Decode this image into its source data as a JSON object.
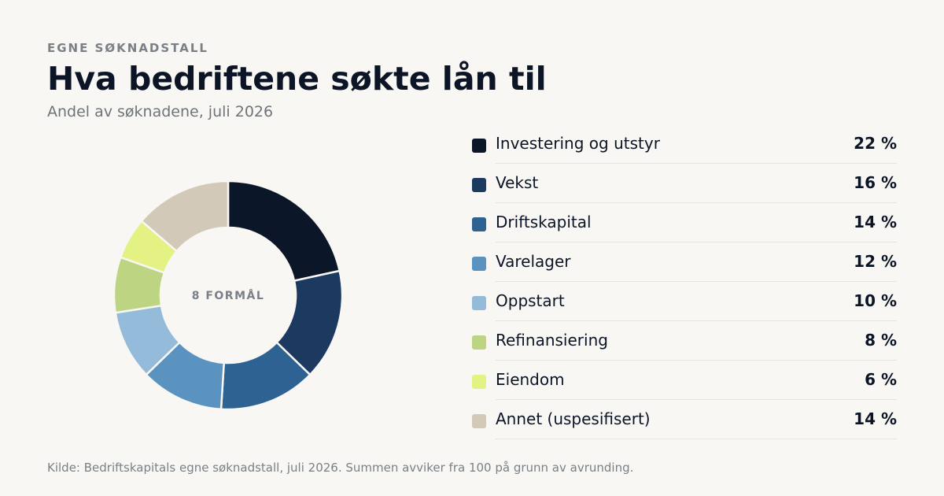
{
  "eyebrow": "EGNE SØKNADSTALL",
  "title": "Hva bedriftene søkte lån til",
  "subtitle": "Andel av søknadene, juli 2026",
  "source": "Kilde: Bedriftskapitals egne søknadstall, juli 2026. Summen avviker fra 100 på grunn av avrunding.",
  "chart_data": {
    "type": "pie",
    "variant": "donut",
    "center_label": "8 FORMÅL",
    "unit": "%",
    "categories": [
      "Investering og utstyr",
      "Vekst",
      "Driftskapital",
      "Varelager",
      "Oppstart",
      "Refinansiering",
      "Eiendom",
      "Annet (uspesifisert)"
    ],
    "values": [
      22,
      16,
      14,
      12,
      10,
      8,
      6,
      14
    ],
    "value_labels": [
      "22 %",
      "16 %",
      "14 %",
      "12 %",
      "10 %",
      "8 %",
      "6 %",
      "14 %"
    ],
    "colors": [
      "#0b1628",
      "#1c3a60",
      "#2d6293",
      "#5a93c0",
      "#94bcda",
      "#bdd582",
      "#e3f283",
      "#d2c9b9"
    ],
    "legend_position": "right"
  }
}
